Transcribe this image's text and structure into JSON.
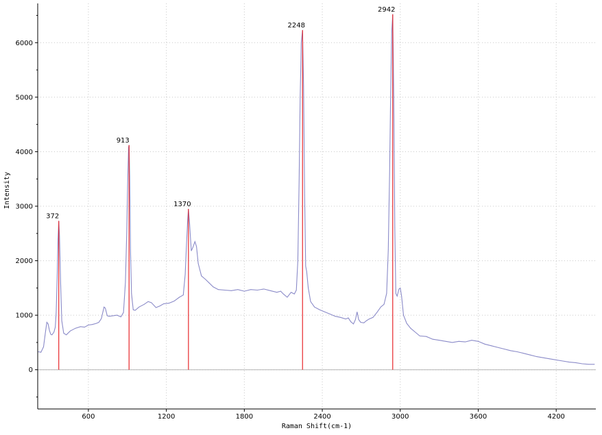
{
  "chart_data": {
    "type": "line",
    "title": "",
    "xlabel": "Raman Shift(cm-1)",
    "ylabel": "Intensity",
    "xlim": [
      210,
      4505
    ],
    "ylim": [
      -720,
      6720
    ],
    "x_ticks": [
      600,
      1200,
      1800,
      2400,
      3000,
      3600,
      4200
    ],
    "y_ticks": [
      0,
      1000,
      2000,
      3000,
      4000,
      5000,
      6000
    ],
    "grid": true,
    "zero_line": true,
    "series": [
      {
        "color": "#8a8ac8",
        "points": [
          [
            215,
            330
          ],
          [
            235,
            320
          ],
          [
            255,
            420
          ],
          [
            270,
            700
          ],
          [
            280,
            870
          ],
          [
            290,
            840
          ],
          [
            300,
            720
          ],
          [
            310,
            650
          ],
          [
            320,
            640
          ],
          [
            335,
            690
          ],
          [
            345,
            780
          ],
          [
            352,
            1050
          ],
          [
            360,
            1700
          ],
          [
            366,
            2400
          ],
          [
            372,
            2730
          ],
          [
            378,
            2450
          ],
          [
            386,
            1600
          ],
          [
            395,
            900
          ],
          [
            410,
            670
          ],
          [
            430,
            640
          ],
          [
            460,
            710
          ],
          [
            500,
            760
          ],
          [
            540,
            790
          ],
          [
            570,
            780
          ],
          [
            600,
            820
          ],
          [
            630,
            830
          ],
          [
            660,
            850
          ],
          [
            680,
            870
          ],
          [
            700,
            940
          ],
          [
            720,
            1150
          ],
          [
            730,
            1130
          ],
          [
            745,
            990
          ],
          [
            760,
            980
          ],
          [
            790,
            990
          ],
          [
            820,
            1000
          ],
          [
            850,
            970
          ],
          [
            870,
            1050
          ],
          [
            885,
            1600
          ],
          [
            895,
            2500
          ],
          [
            903,
            3500
          ],
          [
            909,
            4080
          ],
          [
            913,
            4120
          ],
          [
            918,
            3550
          ],
          [
            924,
            2200
          ],
          [
            932,
            1400
          ],
          [
            945,
            1100
          ],
          [
            960,
            1090
          ],
          [
            990,
            1150
          ],
          [
            1030,
            1200
          ],
          [
            1060,
            1250
          ],
          [
            1085,
            1230
          ],
          [
            1120,
            1140
          ],
          [
            1150,
            1170
          ],
          [
            1180,
            1210
          ],
          [
            1220,
            1220
          ],
          [
            1260,
            1260
          ],
          [
            1300,
            1330
          ],
          [
            1330,
            1370
          ],
          [
            1345,
            1750
          ],
          [
            1355,
            2300
          ],
          [
            1364,
            2750
          ],
          [
            1370,
            2950
          ],
          [
            1378,
            2700
          ],
          [
            1392,
            2180
          ],
          [
            1405,
            2250
          ],
          [
            1420,
            2350
          ],
          [
            1432,
            2260
          ],
          [
            1445,
            1950
          ],
          [
            1470,
            1720
          ],
          [
            1500,
            1660
          ],
          [
            1530,
            1590
          ],
          [
            1560,
            1520
          ],
          [
            1600,
            1470
          ],
          [
            1650,
            1460
          ],
          [
            1700,
            1450
          ],
          [
            1750,
            1470
          ],
          [
            1800,
            1440
          ],
          [
            1850,
            1470
          ],
          [
            1900,
            1460
          ],
          [
            1950,
            1480
          ],
          [
            2000,
            1450
          ],
          [
            2050,
            1420
          ],
          [
            2080,
            1440
          ],
          [
            2100,
            1390
          ],
          [
            2130,
            1330
          ],
          [
            2160,
            1420
          ],
          [
            2185,
            1390
          ],
          [
            2200,
            1460
          ],
          [
            2212,
            2000
          ],
          [
            2222,
            3500
          ],
          [
            2230,
            5000
          ],
          [
            2238,
            6000
          ],
          [
            2248,
            6230
          ],
          [
            2256,
            5200
          ],
          [
            2264,
            3200
          ],
          [
            2272,
            1900
          ],
          [
            2280,
            1800
          ],
          [
            2292,
            1500
          ],
          [
            2310,
            1250
          ],
          [
            2340,
            1150
          ],
          [
            2380,
            1100
          ],
          [
            2420,
            1060
          ],
          [
            2460,
            1020
          ],
          [
            2500,
            980
          ],
          [
            2540,
            960
          ],
          [
            2580,
            930
          ],
          [
            2600,
            950
          ],
          [
            2620,
            880
          ],
          [
            2640,
            840
          ],
          [
            2655,
            920
          ],
          [
            2668,
            1060
          ],
          [
            2680,
            920
          ],
          [
            2695,
            870
          ],
          [
            2720,
            860
          ],
          [
            2740,
            900
          ],
          [
            2760,
            930
          ],
          [
            2790,
            960
          ],
          [
            2820,
            1050
          ],
          [
            2850,
            1150
          ],
          [
            2875,
            1200
          ],
          [
            2895,
            1400
          ],
          [
            2908,
            2200
          ],
          [
            2918,
            3600
          ],
          [
            2926,
            5000
          ],
          [
            2934,
            6200
          ],
          [
            2942,
            6520
          ],
          [
            2950,
            5000
          ],
          [
            2958,
            2600
          ],
          [
            2966,
            1400
          ],
          [
            2976,
            1350
          ],
          [
            2990,
            1480
          ],
          [
            3000,
            1500
          ],
          [
            3010,
            1350
          ],
          [
            3025,
            1000
          ],
          [
            3050,
            850
          ],
          [
            3080,
            760
          ],
          [
            3110,
            700
          ],
          [
            3150,
            620
          ],
          [
            3200,
            610
          ],
          [
            3250,
            560
          ],
          [
            3300,
            540
          ],
          [
            3350,
            520
          ],
          [
            3400,
            500
          ],
          [
            3450,
            520
          ],
          [
            3500,
            510
          ],
          [
            3550,
            540
          ],
          [
            3600,
            520
          ],
          [
            3650,
            470
          ],
          [
            3700,
            440
          ],
          [
            3750,
            410
          ],
          [
            3800,
            380
          ],
          [
            3850,
            350
          ],
          [
            3900,
            330
          ],
          [
            3950,
            300
          ],
          [
            4000,
            270
          ],
          [
            4050,
            240
          ],
          [
            4100,
            220
          ],
          [
            4150,
            200
          ],
          [
            4200,
            180
          ],
          [
            4250,
            160
          ],
          [
            4300,
            140
          ],
          [
            4350,
            130
          ],
          [
            4400,
            110
          ],
          [
            4450,
            100
          ],
          [
            4495,
            100
          ]
        ]
      }
    ],
    "peaks": [
      {
        "x": 372,
        "y": 2730,
        "label": "372"
      },
      {
        "x": 913,
        "y": 4120,
        "label": "913"
      },
      {
        "x": 1370,
        "y": 2950,
        "label": "1370"
      },
      {
        "x": 2248,
        "y": 6230,
        "label": "2248"
      },
      {
        "x": 2942,
        "y": 6520,
        "label": "2942"
      }
    ],
    "peak_color": "#e8262a",
    "colors": {
      "grid": "#c8c8c8",
      "axis": "#000000",
      "zero_line": "#b4b4b4"
    }
  }
}
